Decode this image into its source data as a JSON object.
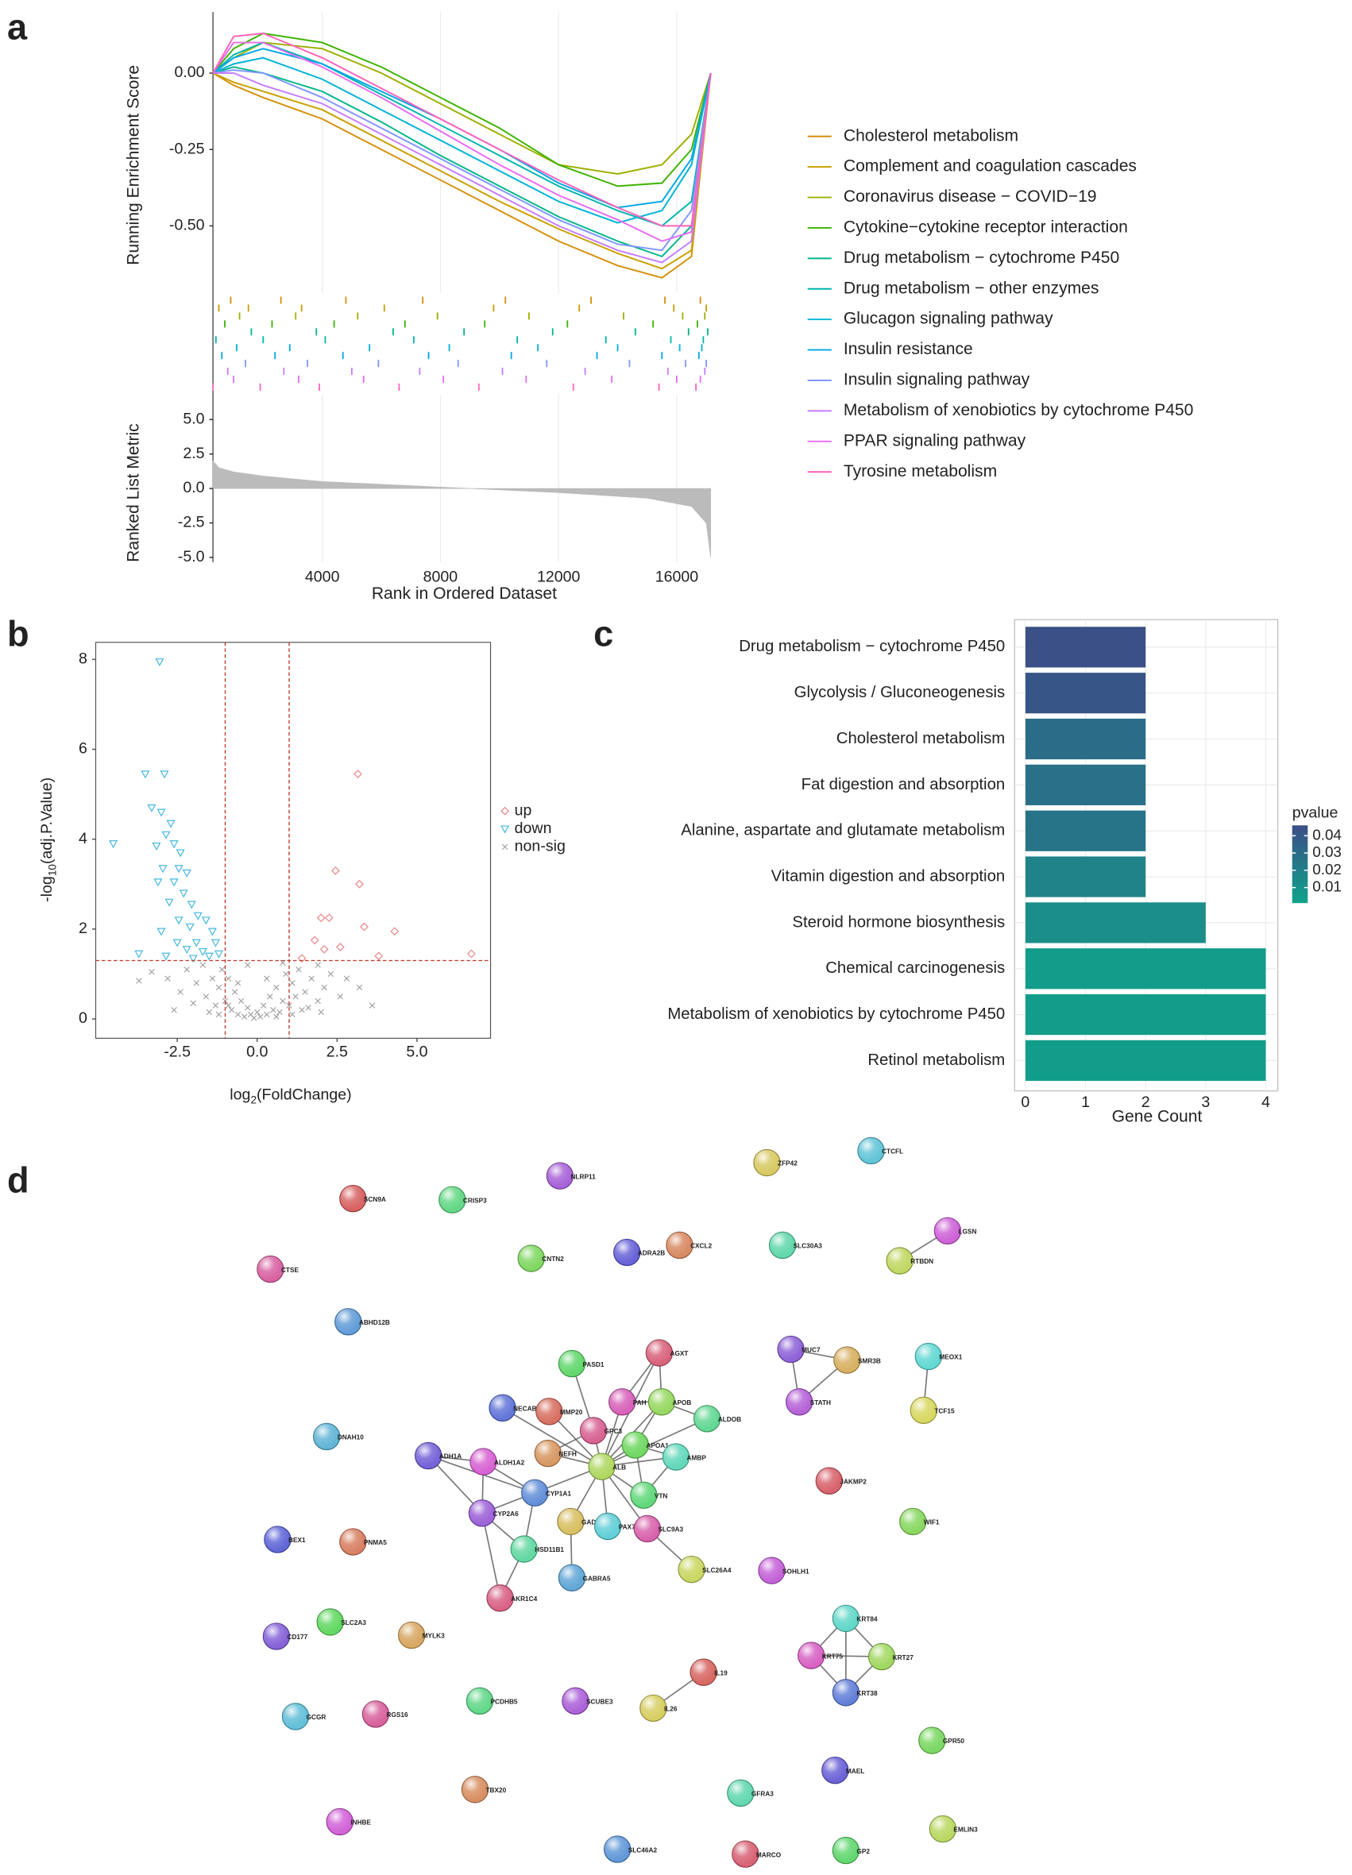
{
  "panel_labels": [
    "a",
    "b",
    "c",
    "d"
  ],
  "chart_data": [
    {
      "type": "gsea",
      "ylabel": "Running Enrichment Score",
      "xlabel": "Rank in Ordered Dataset",
      "xlim": [
        300,
        17150
      ],
      "xticks": [
        4000,
        8000,
        12000,
        16000
      ],
      "ylim": [
        -0.72,
        0.2
      ],
      "yticks": [
        {
          "value": 0,
          "label": "0.00"
        },
        -0.25,
        {
          "value": -0.5,
          "label": "-0.50"
        }
      ],
      "grid": true,
      "x": [
        300,
        1000,
        2000,
        4000,
        6000,
        8000,
        10000,
        12000,
        14000,
        15500,
        16500,
        17150
      ],
      "series": [
        {
          "name": "Cholesterol metabolism",
          "color": "#D4900A",
          "values": [
            0,
            -0.04,
            -0.08,
            -0.15,
            -0.25,
            -0.35,
            -0.45,
            -0.55,
            -0.63,
            -0.67,
            -0.6,
            0
          ],
          "hits": [
            900,
            2600,
            4800,
            7400,
            10200,
            13100,
            15600,
            16800
          ]
        },
        {
          "name": "Complement and coagulation cascades",
          "color": "#C8A000",
          "values": [
            0,
            -0.03,
            -0.06,
            -0.12,
            -0.22,
            -0.32,
            -0.42,
            -0.51,
            -0.59,
            -0.64,
            -0.58,
            0
          ],
          "hits": [
            500,
            1500,
            3300,
            6100,
            9800,
            12700,
            15900,
            17000
          ]
        },
        {
          "name": "Coronavirus disease − COVID−19",
          "color": "#9CB000",
          "values": [
            0,
            0.05,
            0.1,
            0.08,
            0.0,
            -0.1,
            -0.2,
            -0.3,
            -0.33,
            -0.3,
            -0.2,
            0
          ],
          "hits": [
            1200,
            3100,
            5200,
            7900,
            11000,
            14200,
            16200,
            16950
          ]
        },
        {
          "name": "Cytokine−cytokine receptor interaction",
          "color": "#3DB300",
          "values": [
            0,
            0.08,
            0.13,
            0.1,
            0.02,
            -0.08,
            -0.18,
            -0.3,
            -0.37,
            -0.36,
            -0.25,
            0
          ],
          "hits": [
            700,
            2300,
            4400,
            6800,
            9500,
            12300,
            15200,
            16700
          ]
        },
        {
          "name": "Drug metabolism − cytochrome P450",
          "color": "#00B68A",
          "values": [
            0,
            0.02,
            0.0,
            -0.06,
            -0.16,
            -0.27,
            -0.37,
            -0.47,
            -0.55,
            -0.6,
            -0.5,
            0
          ],
          "hits": [
            1600,
            3800,
            6400,
            8800,
            11800,
            14600,
            16400,
            17050
          ]
        },
        {
          "name": "Drug metabolism − other enzymes",
          "color": "#00B5AE",
          "values": [
            0,
            0.06,
            0.1,
            0.03,
            -0.07,
            -0.17,
            -0.27,
            -0.37,
            -0.45,
            -0.5,
            -0.42,
            0
          ],
          "hits": [
            400,
            2000,
            4100,
            7100,
            10600,
            13600,
            15800,
            16900
          ]
        },
        {
          "name": "Glucagon signaling pathway",
          "color": "#00B3D5",
          "values": [
            0,
            0.03,
            0.05,
            -0.02,
            -0.12,
            -0.22,
            -0.32,
            -0.42,
            -0.49,
            -0.45,
            -0.3,
            0
          ],
          "hits": [
            1100,
            2900,
            5600,
            8300,
            11300,
            14000,
            16100,
            16850
          ]
        },
        {
          "name": "Insulin resistance",
          "color": "#00A8E6",
          "values": [
            0,
            0.05,
            0.08,
            0.03,
            -0.06,
            -0.15,
            -0.25,
            -0.36,
            -0.44,
            -0.42,
            -0.28,
            0
          ],
          "hits": [
            600,
            2400,
            4700,
            7600,
            10400,
            13300,
            15500,
            16750
          ]
        },
        {
          "name": "Insulin signaling pathway",
          "color": "#7F96FF",
          "values": [
            0,
            0.01,
            0.0,
            -0.08,
            -0.18,
            -0.28,
            -0.38,
            -0.48,
            -0.56,
            -0.58,
            -0.45,
            0
          ],
          "hits": [
            1400,
            3500,
            5900,
            8600,
            11600,
            14400,
            16300,
            17000
          ]
        },
        {
          "name": "Metabolism of xenobiotics by cytochrome P450",
          "color": "#C77CFF",
          "values": [
            0,
            0.0,
            -0.04,
            -0.1,
            -0.2,
            -0.3,
            -0.4,
            -0.5,
            -0.58,
            -0.62,
            -0.55,
            0
          ],
          "hits": [
            800,
            2700,
            5000,
            7300,
            10100,
            12900,
            15700,
            16950
          ]
        },
        {
          "name": "PPAR signaling pathway",
          "color": "#E76BF3",
          "values": [
            0,
            0.1,
            0.1,
            0.02,
            -0.08,
            -0.19,
            -0.3,
            -0.4,
            -0.48,
            -0.55,
            -0.52,
            0
          ],
          "hits": [
            1000,
            3200,
            5400,
            8100,
            10900,
            13800,
            16000,
            16800
          ]
        },
        {
          "name": "Tyrosine metabolism",
          "color": "#FF62BC",
          "values": [
            0,
            0.12,
            0.13,
            0.05,
            -0.05,
            -0.15,
            -0.25,
            -0.35,
            -0.44,
            -0.5,
            -0.5,
            0
          ],
          "hits": [
            300,
            1900,
            3900,
            6600,
            9300,
            12500,
            15400,
            16650
          ]
        }
      ],
      "metric": {
        "ylabel": "Ranked List Metric",
        "color": "#BBBBBB",
        "ylim": [
          -5.35,
          6.8
        ],
        "yticks": [
          {
            "value": 5,
            "label": "5.0"
          },
          2.5,
          {
            "value": 0,
            "label": "0.0"
          },
          -2.5,
          {
            "value": -5,
            "label": "-5.0"
          }
        ],
        "x": [
          300,
          500,
          1000,
          2000,
          4000,
          8000,
          12000,
          15000,
          16500,
          17000,
          17150
        ],
        "values": [
          2.0,
          1.5,
          1.2,
          0.9,
          0.5,
          0.1,
          -0.3,
          -0.7,
          -1.3,
          -2.5,
          -5.0
        ]
      }
    },
    {
      "type": "scatter",
      "xlabel": {
        "text": "log",
        "sub": "2",
        "post": "(FoldChange)"
      },
      "ylabel": {
        "text": "-log",
        "sub": "10",
        "post": "(adj.P.Value)"
      },
      "xlim": [
        -5.05,
        7.3
      ],
      "xticks": [
        -2.5,
        {
          "value": 0,
          "label": "0.0"
        },
        2.5,
        {
          "value": 5,
          "label": "5.0"
        }
      ],
      "ylim": [
        -0.43,
        8.38
      ],
      "yticks": [
        0,
        2,
        4,
        6,
        8
      ],
      "vlines": [
        -1,
        1
      ],
      "hlines": [
        1.3
      ],
      "threshold_color": "#C0392B",
      "series": [
        {
          "name": "up",
          "color": "#E8868A",
          "marker": "diamond",
          "x": [
            3.15,
            2.45,
            3.2,
            2.0,
            2.25,
            3.35,
            4.3,
            1.8,
            2.1,
            2.6,
            3.8,
            6.7,
            1.4
          ],
          "values": [
            5.45,
            3.3,
            3.0,
            2.25,
            2.25,
            2.05,
            1.95,
            1.75,
            1.55,
            1.6,
            1.4,
            1.45,
            1.35
          ]
        },
        {
          "name": "down",
          "color": "#45B8DE",
          "marker": "triangle-down",
          "x": [
            -3.05,
            -4.5,
            -3.5,
            -2.9,
            -3.3,
            -3.0,
            -2.7,
            -2.85,
            -2.6,
            -3.15,
            -2.4,
            -2.95,
            -2.45,
            -2.2,
            -3.1,
            -2.6,
            -2.3,
            -2.75,
            -2.05,
            -1.85,
            -2.45,
            -1.6,
            -2.1,
            -3.0,
            -1.4,
            -2.5,
            -1.9,
            -1.3,
            -2.2,
            -1.7,
            -3.7,
            -2.85,
            -1.5,
            -2.0,
            -1.2
          ],
          "values": [
            7.95,
            3.9,
            5.45,
            5.45,
            4.7,
            4.6,
            4.35,
            4.1,
            3.9,
            3.85,
            3.7,
            3.35,
            3.35,
            3.25,
            3.05,
            3.05,
            2.8,
            2.6,
            2.55,
            2.3,
            2.2,
            2.2,
            2.05,
            1.95,
            1.95,
            1.7,
            1.7,
            1.7,
            1.55,
            1.5,
            1.45,
            1.4,
            1.4,
            1.35,
            1.45
          ]
        },
        {
          "name": "non-sig",
          "color": "#999999",
          "marker": "cross",
          "x": [
            -3.3,
            -3.7,
            -2.8,
            -2.4,
            -2.2,
            -1.9,
            -1.7,
            -1.6,
            -1.4,
            -1.3,
            -1.2,
            -1.1,
            -1.0,
            -0.9,
            -0.8,
            -0.7,
            -0.6,
            -0.5,
            -0.4,
            -0.3,
            -0.2,
            -0.1,
            0,
            0.1,
            0.2,
            0.3,
            0.4,
            0.5,
            0.6,
            0.7,
            0.8,
            0.9,
            1.0,
            1.1,
            1.2,
            1.3,
            1.4,
            1.5,
            1.7,
            1.9,
            2.1,
            2.3,
            2.6,
            2.8,
            3.2,
            3.6,
            -1.5,
            -0.9,
            0.6,
            1.6,
            -2.0,
            2.0,
            -1.2,
            1.1,
            -0.6,
            0.3,
            -0.3,
            0.8,
            1.9,
            -2.6
          ],
          "values": [
            1.05,
            0.85,
            0.9,
            0.6,
            1.1,
            0.8,
            1.2,
            0.5,
            0.9,
            0.3,
            0.7,
            1.1,
            0.4,
            0.9,
            0.2,
            0.6,
            0.1,
            0.4,
            0.05,
            0.25,
            0.1,
            0.02,
            0.15,
            0.05,
            0.3,
            0.1,
            0.5,
            0.2,
            0.7,
            0.15,
            0.4,
            1.0,
            0.3,
            0.8,
            0.5,
            1.1,
            0.2,
            0.6,
            0.9,
            0.4,
            0.7,
            1.0,
            0.5,
            0.9,
            0.7,
            0.3,
            0.15,
            0.3,
            0.05,
            0.25,
            0.35,
            0.15,
            0.1,
            0.1,
            0.8,
            0.9,
            1.2,
            1.25,
            1.2,
            0.2
          ]
        }
      ]
    },
    {
      "type": "barh",
      "xlabel": "Gene Count",
      "xlim": [
        -0.18,
        4.2
      ],
      "xticks": [
        0,
        1,
        2,
        3,
        4
      ],
      "grid": true,
      "categories": [
        "Drug metabolism − cytochrome P450",
        "Glycolysis / Gluconeogenesis",
        "Cholesterol metabolism",
        "Fat digestion and absorption",
        "Alanine, aspartate and glutamate metabolism",
        "Vitamin digestion and absorption",
        "Steroid hormone biosynthesis",
        "Chemical carcinogenesis",
        "Metabolism of xenobiotics by cytochrome P450",
        "Retinol metabolism"
      ],
      "values": [
        2,
        2,
        2,
        2,
        2,
        2,
        3,
        4,
        4,
        4
      ],
      "pvalues": [
        0.045,
        0.042,
        0.03,
        0.028,
        0.026,
        0.018,
        0.012,
        0.004,
        0.004,
        0.004
      ],
      "colorbar": {
        "title": "pvalue",
        "lim": [
          0.001,
          0.046
        ],
        "ticks": [
          0.04,
          0.03,
          0.02,
          0.01
        ],
        "colors": [
          "#0FA38A",
          "#3B4E87"
        ]
      }
    }
  ],
  "network": {
    "nodes": [
      "SCN9A",
      "CRISP3",
      "NLRP11",
      "ZFP42",
      "CTCFL",
      "CTSE",
      "CNTN2",
      "ADRA2B",
      "CXCL2",
      "SLC30A3",
      "LGSN",
      "RTBDN",
      "ABHD12B",
      "AGXT",
      "PASD1",
      "MUC7",
      "SMR3B",
      "MEOX1",
      "PAH",
      "APOB",
      "NECAB2",
      "MMP20",
      "ALDOB",
      "STATH",
      "TCF15",
      "DNAH10",
      "GPC3",
      "APOA1",
      "ADH1A",
      "NEFH",
      "AMBP",
      "ALDH1A2",
      "ALB",
      "CYP1A1",
      "JAKMP2",
      "VTN",
      "CYP2A6",
      "GAD1",
      "PAX7",
      "SLC9A3",
      "WIF1",
      "BEX1",
      "PNMA5",
      "HSD11B1",
      "SOHLH1",
      "SLC26A4",
      "GABRA5",
      "AKR1C4",
      "SLC2A3",
      "CD177",
      "MYLK3",
      "KRT84",
      "KRT75",
      "KRT27",
      "KRT38",
      "IL19",
      "PCDHB5",
      "SCUBE3",
      "IL26",
      "GCGR",
      "RGS16",
      "GPR50",
      "MAEL",
      "TBX20",
      "GFRA3",
      "INHBE",
      "EMLIN3",
      "SLC46A2",
      "MARCO",
      "GP2"
    ],
    "edges": [
      [
        10,
        11
      ],
      [
        15,
        16
      ],
      [
        15,
        23
      ],
      [
        16,
        23
      ],
      [
        17,
        24
      ],
      [
        51,
        52
      ],
      [
        51,
        53
      ],
      [
        51,
        54
      ],
      [
        52,
        53
      ],
      [
        52,
        54
      ],
      [
        53,
        54
      ],
      [
        55,
        58
      ],
      [
        39,
        45
      ],
      [
        32,
        13
      ],
      [
        32,
        18
      ],
      [
        32,
        19
      ],
      [
        32,
        26
      ],
      [
        32,
        27
      ],
      [
        32,
        30
      ],
      [
        32,
        35
      ],
      [
        32,
        29
      ],
      [
        32,
        33
      ],
      [
        32,
        37
      ],
      [
        32,
        38
      ],
      [
        32,
        39
      ],
      [
        32,
        21
      ],
      [
        32,
        22
      ],
      [
        32,
        20
      ],
      [
        19,
        27
      ],
      [
        19,
        18
      ],
      [
        19,
        13
      ],
      [
        19,
        22
      ],
      [
        27,
        30
      ],
      [
        27,
        35
      ],
      [
        30,
        35
      ],
      [
        18,
        13
      ],
      [
        26,
        14
      ],
      [
        33,
        31
      ],
      [
        33,
        28
      ],
      [
        33,
        36
      ],
      [
        33,
        43
      ],
      [
        31,
        28
      ],
      [
        31,
        36
      ],
      [
        28,
        36
      ],
      [
        36,
        43
      ],
      [
        43,
        47
      ],
      [
        36,
        47
      ],
      [
        37,
        46
      ],
      [
        26,
        29
      ]
    ]
  }
}
